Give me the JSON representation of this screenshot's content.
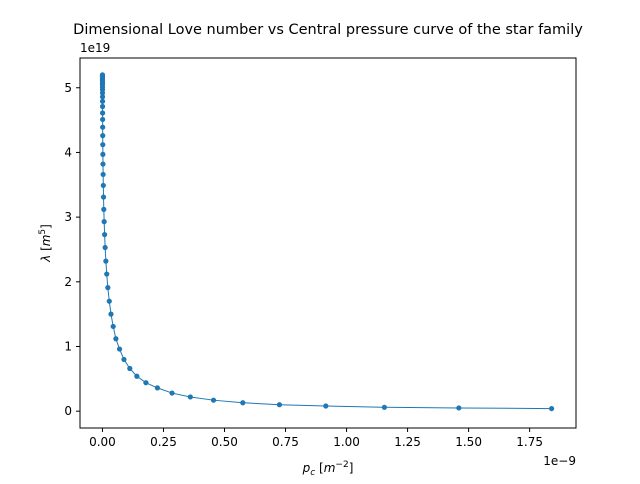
{
  "chart_data": {
    "type": "line",
    "title": "Dimensional Love number vs Central pressure curve of the star family",
    "xlabel": "p_c [m^-2]",
    "ylabel": "λ [m^5]",
    "x_multiplier_label": "1e−9",
    "y_multiplier_label": "1e19",
    "xlim": [
      -0.092,
      1.94
    ],
    "ylim": [
      -0.26,
      5.46
    ],
    "x_ticks": [
      0.0,
      0.25,
      0.5,
      0.75,
      1.0,
      1.25,
      1.5,
      1.75
    ],
    "x_tick_labels": [
      "0.00",
      "0.25",
      "0.50",
      "0.75",
      "1.00",
      "1.25",
      "1.50",
      "1.75"
    ],
    "y_ticks": [
      0,
      1,
      2,
      3,
      4,
      5
    ],
    "y_tick_labels": [
      "0",
      "1",
      "2",
      "3",
      "4",
      "5"
    ],
    "grid": false,
    "series_color": "#1f77b4",
    "series": [
      {
        "x": [
          1.84,
          1.46,
          1.155,
          0.915,
          0.725,
          0.575,
          0.455,
          0.36,
          0.285,
          0.225,
          0.178,
          0.141,
          0.112,
          0.088,
          0.07,
          0.055,
          0.044,
          0.035,
          0.028,
          0.022,
          0.0175,
          0.014,
          0.011,
          0.0088,
          0.007,
          0.0055,
          0.0044,
          0.0035,
          0.0028,
          0.0022,
          0.0018,
          0.0014,
          0.0011,
          0.0009,
          0.0007,
          0.00055,
          0.00044,
          0.00035,
          0.00028,
          0.00022,
          0.00018,
          0.00014,
          0.00011,
          9e-05,
          7e-05,
          5e-05,
          4e-05,
          3e-05,
          2e-05,
          1e-05
        ],
        "y": [
          0.04,
          0.05,
          0.06,
          0.08,
          0.1,
          0.13,
          0.17,
          0.22,
          0.28,
          0.36,
          0.44,
          0.54,
          0.66,
          0.8,
          0.96,
          1.12,
          1.31,
          1.5,
          1.7,
          1.91,
          2.12,
          2.32,
          2.53,
          2.73,
          2.93,
          3.12,
          3.31,
          3.49,
          3.66,
          3.82,
          3.97,
          4.12,
          4.26,
          4.39,
          4.51,
          4.61,
          4.71,
          4.79,
          4.86,
          4.92,
          4.97,
          5.01,
          5.05,
          5.08,
          5.11,
          5.13,
          5.15,
          5.17,
          5.19,
          5.2
        ]
      }
    ]
  }
}
